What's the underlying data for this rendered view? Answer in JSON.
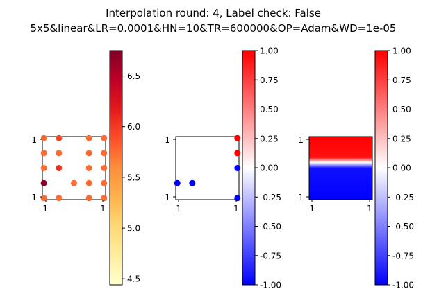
{
  "figure": {
    "title_line1": "Interpolation round: 4, Label check: False",
    "title_line2": "5x5&linear&LR=0.0001&HN=10&TR=600000&OP=Adam&WD=1e-05"
  },
  "chart_data": [
    {
      "type": "scatter",
      "xlim": [
        -1.05,
        1.05
      ],
      "ylim": [
        -1.05,
        1.05
      ],
      "x_ticks": [
        "-1",
        "1"
      ],
      "y_ticks": [
        "1",
        "-1"
      ],
      "grid": false,
      "colormap": "YlOrRd",
      "colorbar": {
        "range": [
          4.44,
          6.75
        ],
        "ticks": [
          "4.5",
          "5.0",
          "5.5",
          "6.0",
          "6.5"
        ]
      },
      "points": [
        {
          "x": -1.0,
          "y": 1.0,
          "value": 5.75
        },
        {
          "x": -0.5,
          "y": 1.0,
          "value": 5.95
        },
        {
          "x": 0.5,
          "y": 1.0,
          "value": 5.75
        },
        {
          "x": 1.0,
          "y": 1.0,
          "value": 5.75
        },
        {
          "x": -1.0,
          "y": 0.5,
          "value": 5.75
        },
        {
          "x": -0.5,
          "y": 0.5,
          "value": 5.75
        },
        {
          "x": 0.5,
          "y": 0.5,
          "value": 5.75
        },
        {
          "x": 1.0,
          "y": 0.5,
          "value": 5.75
        },
        {
          "x": -1.0,
          "y": 0.0,
          "value": 5.75
        },
        {
          "x": -0.5,
          "y": 0.0,
          "value": 6.05
        },
        {
          "x": 0.5,
          "y": 0.0,
          "value": 5.75
        },
        {
          "x": 1.0,
          "y": 0.0,
          "value": 5.75
        },
        {
          "x": -1.0,
          "y": -0.5,
          "value": 6.7
        },
        {
          "x": 0.0,
          "y": -0.5,
          "value": 5.75
        },
        {
          "x": 0.5,
          "y": -0.5,
          "value": 5.75
        },
        {
          "x": 1.0,
          "y": -0.5,
          "value": 5.75
        },
        {
          "x": -1.0,
          "y": -1.0,
          "value": 5.75
        },
        {
          "x": -0.5,
          "y": -1.0,
          "value": 5.75
        },
        {
          "x": 0.5,
          "y": -1.0,
          "value": 5.75
        },
        {
          "x": 1.0,
          "y": -1.0,
          "value": 5.75
        }
      ]
    },
    {
      "type": "scatter",
      "xlim": [
        -1.05,
        1.05
      ],
      "ylim": [
        -1.05,
        1.05
      ],
      "x_ticks": [
        "-1",
        "1"
      ],
      "y_ticks": [
        "1",
        "-1"
      ],
      "grid": false,
      "colormap": "bwr",
      "colorbar": {
        "range": [
          -1.0,
          1.0
        ],
        "ticks": [
          "-1.00",
          "-0.75",
          "-0.50",
          "-0.25",
          "0.00",
          "0.25",
          "0.50",
          "0.75",
          "1.00"
        ]
      },
      "points": [
        {
          "x": 1.0,
          "y": 1.0,
          "value": 1
        },
        {
          "x": 1.0,
          "y": 0.5,
          "value": 1
        },
        {
          "x": 1.0,
          "y": 0.0,
          "value": -1
        },
        {
          "x": -1.0,
          "y": -0.5,
          "value": -1
        },
        {
          "x": -0.5,
          "y": -0.5,
          "value": -1
        },
        {
          "x": 1.0,
          "y": -1.0,
          "value": -1
        }
      ]
    },
    {
      "type": "heatmap",
      "xlim": [
        -1.05,
        1.05
      ],
      "ylim": [
        -1.05,
        1.05
      ],
      "x_ticks": [
        "-1",
        "1"
      ],
      "y_ticks": [
        "1",
        "-1"
      ],
      "grid": false,
      "colormap": "bwr",
      "colorbar": {
        "range": [
          -1.0,
          1.0
        ],
        "ticks": [
          "-1.00",
          "-0.75",
          "-0.50",
          "-0.25",
          "0.00",
          "0.25",
          "0.50",
          "0.75",
          "1.00"
        ]
      },
      "decision_boundary_y": 0.2,
      "transition_width": 0.12
    }
  ],
  "colors": {
    "red": "#ff0000",
    "blue": "#0000ff",
    "white": "#ffffff"
  }
}
